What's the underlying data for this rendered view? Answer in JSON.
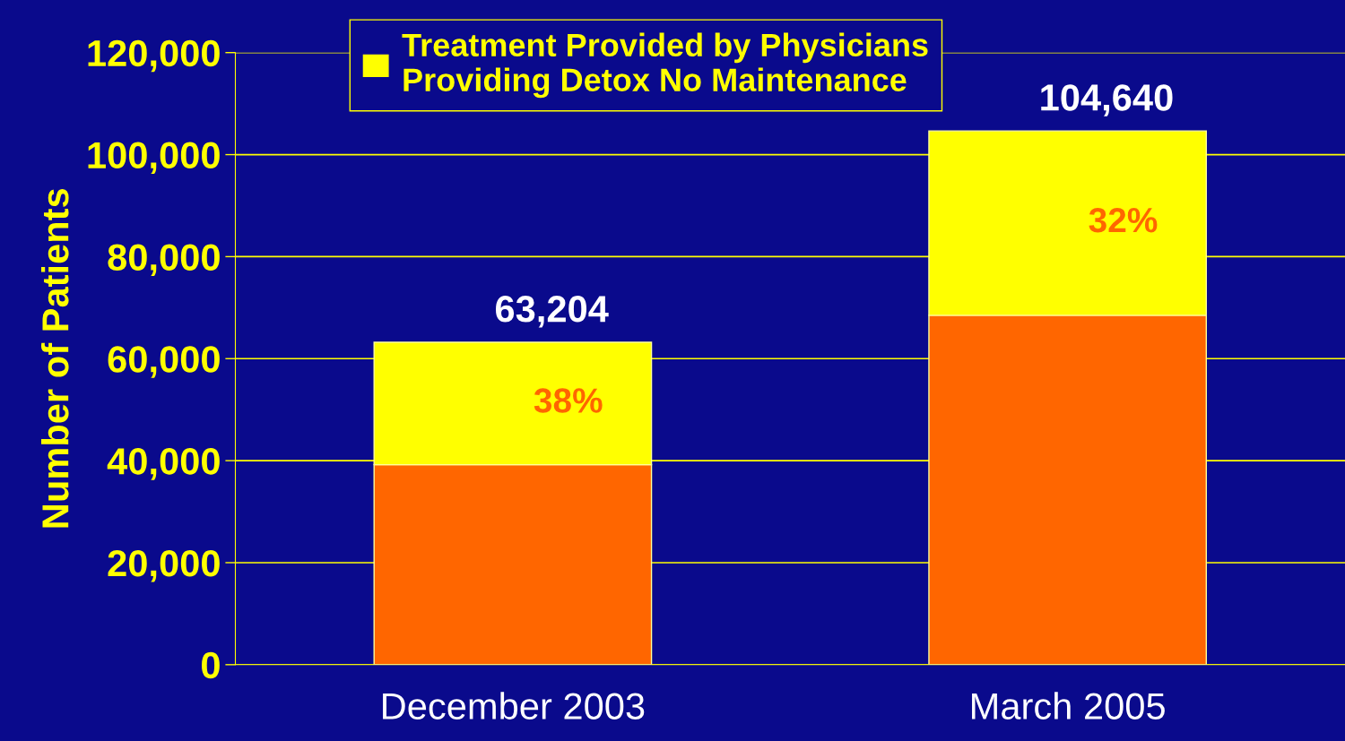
{
  "chart_data": {
    "type": "bar",
    "stacked": true,
    "ylabel": "Number of Patients",
    "categories": [
      "December 2003",
      "March 2005"
    ],
    "series": [
      {
        "color": "#ff6600",
        "values": [
          39200,
          68500
        ]
      },
      {
        "name": "Treatment Provided by Physicians\nProviding Detox No Maintenance",
        "color": "#ffff00",
        "values": [
          24004,
          36140
        ]
      }
    ],
    "totals": [
      "63,204",
      "104,640"
    ],
    "annotations": [
      "38%",
      "32%"
    ],
    "ylim": [
      0,
      120000
    ],
    "yticks": [
      {
        "value": 0,
        "label": "0"
      },
      {
        "value": 20000,
        "label": "20,000"
      },
      {
        "value": 40000,
        "label": "40,000"
      },
      {
        "value": 60000,
        "label": "60,000"
      },
      {
        "value": 80000,
        "label": "80,000"
      },
      {
        "value": 100000,
        "label": "100,000"
      },
      {
        "value": 120000,
        "label": "120,000"
      }
    ],
    "grid": "y",
    "legend": "top"
  }
}
